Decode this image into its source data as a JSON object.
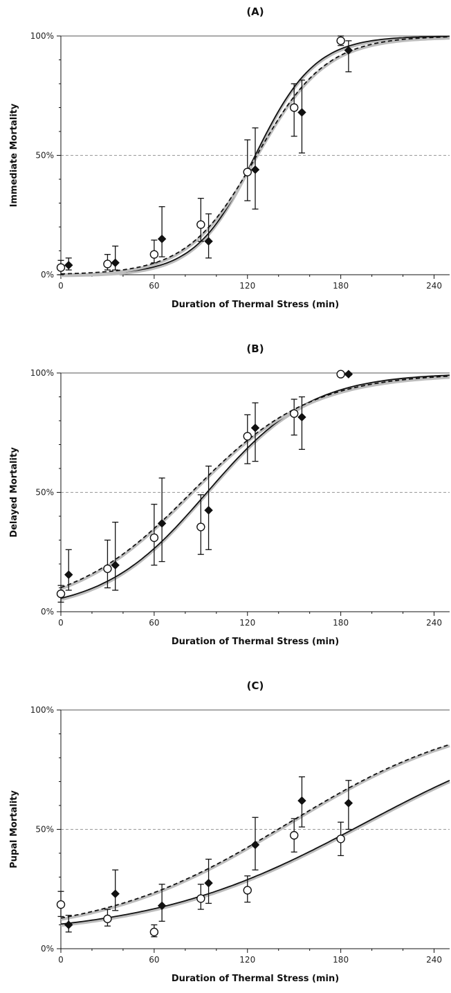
{
  "chart_data": [
    {
      "type": "scatter",
      "title": "(A)",
      "xlabel": "Duration of Thermal Stress (min)",
      "ylabel": "Immediate Mortality",
      "xlim": [
        0,
        250
      ],
      "ylim": [
        0,
        100
      ],
      "x_ticks": [
        0,
        60,
        120,
        180,
        240
      ],
      "y_ticks": [
        0,
        50,
        100
      ],
      "y_tick_labels": [
        "0%",
        "50%",
        "100%"
      ],
      "reference_line": 50,
      "series": [
        {
          "marker": "open-circle",
          "fill": "#ffffff",
          "points": [
            {
              "x": 0,
              "y": 3,
              "lo": 0,
              "hi": 6
            },
            {
              "x": 30,
              "y": 4.5,
              "lo": 2,
              "hi": 8.5
            },
            {
              "x": 60,
              "y": 8.5,
              "lo": 5,
              "hi": 14.5
            },
            {
              "x": 90,
              "y": 21,
              "lo": 14,
              "hi": 32
            },
            {
              "x": 120,
              "y": 43,
              "lo": 31,
              "hi": 56.5
            },
            {
              "x": 150,
              "y": 70,
              "lo": 58,
              "hi": 80
            },
            {
              "x": 180,
              "y": 98,
              "lo": 96,
              "hi": 100
            }
          ]
        },
        {
          "marker": "filled-diamond",
          "fill": "#111111",
          "points": [
            {
              "x": 5,
              "y": 4,
              "lo": 2,
              "hi": 7
            },
            {
              "x": 35,
              "y": 5,
              "lo": 2,
              "hi": 12
            },
            {
              "x": 65,
              "y": 15,
              "lo": 7.5,
              "hi": 28.5
            },
            {
              "x": 95,
              "y": 14,
              "lo": 7,
              "hi": 25.5
            },
            {
              "x": 125,
              "y": 44,
              "lo": 27.5,
              "hi": 61.5
            },
            {
              "x": 155,
              "y": 68,
              "lo": 51,
              "hi": 81.5
            },
            {
              "x": 185,
              "y": 94,
              "lo": 85,
              "hi": 98
            }
          ]
        }
      ],
      "curves": [
        {
          "style": "solid",
          "x50": 125,
          "slope": 0.052,
          "base": 0
        },
        {
          "style": "dashed",
          "x50": 126,
          "slope": 0.045,
          "base": 0
        }
      ]
    },
    {
      "type": "scatter",
      "title": "(B)",
      "xlabel": "Duration of Thermal Stress (min)",
      "ylabel": "Delayed Mortality",
      "xlim": [
        0,
        250
      ],
      "ylim": [
        0,
        100
      ],
      "x_ticks": [
        0,
        60,
        120,
        180,
        240
      ],
      "y_ticks": [
        0,
        50,
        100
      ],
      "y_tick_labels": [
        "0%",
        "50%",
        "100%"
      ],
      "reference_line": 50,
      "series": [
        {
          "marker": "open-circle",
          "fill": "#ffffff",
          "points": [
            {
              "x": 0,
              "y": 7.5,
              "lo": 4,
              "hi": 11
            },
            {
              "x": 30,
              "y": 18,
              "lo": 10,
              "hi": 30
            },
            {
              "x": 60,
              "y": 31,
              "lo": 19.5,
              "hi": 45
            },
            {
              "x": 90,
              "y": 35.5,
              "lo": 24,
              "hi": 49
            },
            {
              "x": 120,
              "y": 73.5,
              "lo": 62,
              "hi": 82.5
            },
            {
              "x": 150,
              "y": 83,
              "lo": 74,
              "hi": 89
            },
            {
              "x": 180,
              "y": 99.5,
              "lo": 99,
              "hi": 100
            }
          ]
        },
        {
          "marker": "filled-diamond",
          "fill": "#111111",
          "points": [
            {
              "x": 5,
              "y": 15.5,
              "lo": 9,
              "hi": 26
            },
            {
              "x": 35,
              "y": 19.5,
              "lo": 9,
              "hi": 37.5
            },
            {
              "x": 65,
              "y": 37,
              "lo": 21,
              "hi": 56
            },
            {
              "x": 95,
              "y": 42.5,
              "lo": 26,
              "hi": 61
            },
            {
              "x": 125,
              "y": 77,
              "lo": 63,
              "hi": 87.5
            },
            {
              "x": 155,
              "y": 81.5,
              "lo": 68,
              "hi": 90
            },
            {
              "x": 185,
              "y": 99.5,
              "lo": 99,
              "hi": 100
            }
          ]
        }
      ],
      "curves": [
        {
          "style": "solid",
          "x50": 94,
          "slope": 0.03,
          "base": 0
        },
        {
          "style": "dashed",
          "x50": 84,
          "slope": 0.026,
          "base": 0
        }
      ]
    },
    {
      "type": "scatter",
      "title": "(C)",
      "xlabel": "Duration of Thermal Stress (min)",
      "ylabel": "Pupal Mortality",
      "xlim": [
        0,
        250
      ],
      "ylim": [
        0,
        100
      ],
      "x_ticks": [
        0,
        60,
        120,
        180,
        240
      ],
      "y_ticks": [
        0,
        50,
        100
      ],
      "y_tick_labels": [
        "0%",
        "50%",
        "100%"
      ],
      "reference_line": 50,
      "series": [
        {
          "marker": "open-circle",
          "fill": "#ffffff",
          "points": [
            {
              "x": 0,
              "y": 18.5,
              "lo": 13.5,
              "hi": 24
            },
            {
              "x": 30,
              "y": 12.5,
              "lo": 9.5,
              "hi": 16.5
            },
            {
              "x": 60,
              "y": 7,
              "lo": 5,
              "hi": 10
            },
            {
              "x": 90,
              "y": 21,
              "lo": 16.5,
              "hi": 27
            },
            {
              "x": 120,
              "y": 24.5,
              "lo": 19.5,
              "hi": 30.5
            },
            {
              "x": 150,
              "y": 47.5,
              "lo": 40.5,
              "hi": 54.5
            },
            {
              "x": 180,
              "y": 46,
              "lo": 39,
              "hi": 53
            }
          ]
        },
        {
          "marker": "filled-diamond",
          "fill": "#111111",
          "points": [
            {
              "x": 5,
              "y": 10,
              "lo": 7,
              "hi": 14
            },
            {
              "x": 35,
              "y": 23,
              "lo": 16,
              "hi": 33
            },
            {
              "x": 65,
              "y": 18,
              "lo": 11.5,
              "hi": 27
            },
            {
              "x": 95,
              "y": 27.5,
              "lo": 19,
              "hi": 37.5
            },
            {
              "x": 125,
              "y": 43.5,
              "lo": 33,
              "hi": 55
            },
            {
              "x": 155,
              "y": 62,
              "lo": 51,
              "hi": 72
            },
            {
              "x": 185,
              "y": 61,
              "lo": 50,
              "hi": 70.5
            }
          ]
        }
      ],
      "curves": [
        {
          "style": "solid",
          "x50": 195,
          "slope": 0.0145,
          "base": 5
        },
        {
          "style": "dashed",
          "x50": 146,
          "slope": 0.0165,
          "base": 5
        }
      ]
    }
  ]
}
